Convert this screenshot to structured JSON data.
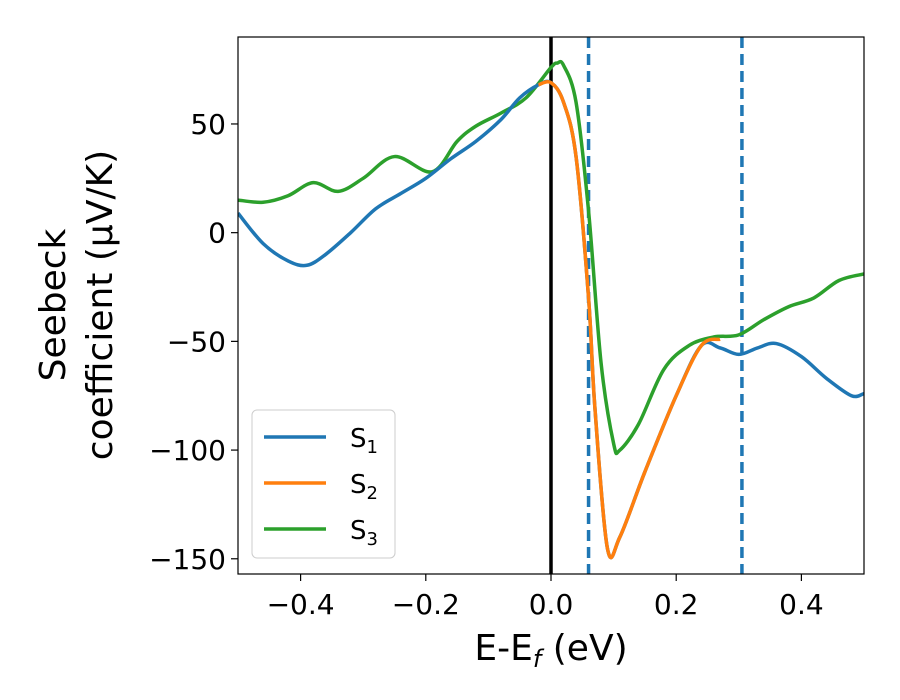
{
  "chart_data": {
    "type": "line",
    "xlabel": "E-E",
    "xlabel_sub": "f",
    "xlabel_unit": " (eV)",
    "ylabel_line1": "Seebeck",
    "ylabel_line2": "coefficient  (μV/K)",
    "xlim": [
      -0.5,
      0.5
    ],
    "ylim": [
      -157,
      90
    ],
    "xticks": [
      -0.4,
      -0.2,
      0.0,
      0.2,
      0.4
    ],
    "xtick_labels": [
      "−0.4",
      "−0.2",
      "0.0",
      "0.2",
      "0.4"
    ],
    "yticks": [
      -150,
      -100,
      -50,
      0,
      50
    ],
    "ytick_labels": [
      "−150",
      "−100",
      "−50",
      "0",
      "50"
    ],
    "grid": false,
    "legend_position": "lower-left",
    "vertical_lines": [
      {
        "x": 0.0,
        "style": "solid",
        "color": "#000000"
      },
      {
        "x": 0.06,
        "style": "dashed",
        "color": "#1f77b4"
      },
      {
        "x": 0.305,
        "style": "dashed",
        "color": "#1f77b4"
      }
    ],
    "series": [
      {
        "name": "S",
        "name_sub": "1",
        "color": "#1f77b4",
        "x": [
          -0.5,
          -0.46,
          -0.42,
          -0.39,
          -0.36,
          -0.32,
          -0.28,
          -0.24,
          -0.2,
          -0.16,
          -0.12,
          -0.08,
          -0.05,
          -0.02,
          0.0,
          0.02,
          0.04,
          0.06,
          0.07,
          0.09,
          0.11,
          0.15,
          0.2,
          0.24,
          0.27,
          0.3,
          0.33,
          0.36,
          0.4,
          0.44,
          0.48,
          0.5
        ],
        "values": [
          9,
          -5,
          -13,
          -15,
          -10,
          0,
          11,
          18,
          25,
          34,
          42,
          52,
          62,
          68,
          69,
          60,
          35,
          -30,
          -80,
          -145,
          -140,
          -110,
          -75,
          -52,
          -53,
          -56,
          -53,
          -51,
          -57,
          -67,
          -75,
          -74
        ]
      },
      {
        "name": "S",
        "name_sub": "2",
        "color": "#ff7f0e",
        "x": [
          -0.02,
          0.0,
          0.02,
          0.04,
          0.06,
          0.07,
          0.09,
          0.11,
          0.15,
          0.2,
          0.24,
          0.27
        ],
        "values": [
          68,
          69,
          60,
          35,
          -30,
          -80,
          -145,
          -140,
          -110,
          -75,
          -52,
          -49
        ]
      },
      {
        "name": "S",
        "name_sub": "3",
        "color": "#2ca02c",
        "x": [
          -0.5,
          -0.46,
          -0.42,
          -0.38,
          -0.34,
          -0.3,
          -0.25,
          -0.19,
          -0.15,
          -0.12,
          -0.08,
          -0.04,
          0.0,
          0.01,
          0.02,
          0.04,
          0.06,
          0.08,
          0.1,
          0.11,
          0.14,
          0.18,
          0.22,
          0.26,
          0.3,
          0.34,
          0.38,
          0.42,
          0.46,
          0.5
        ],
        "values": [
          15,
          14,
          17,
          23,
          19,
          25,
          35,
          28,
          42,
          49,
          55,
          62,
          76,
          78,
          77,
          60,
          10,
          -60,
          -97,
          -100,
          -88,
          -63,
          -52,
          -48,
          -47,
          -40,
          -34,
          -30,
          -22,
          -19
        ]
      }
    ]
  }
}
